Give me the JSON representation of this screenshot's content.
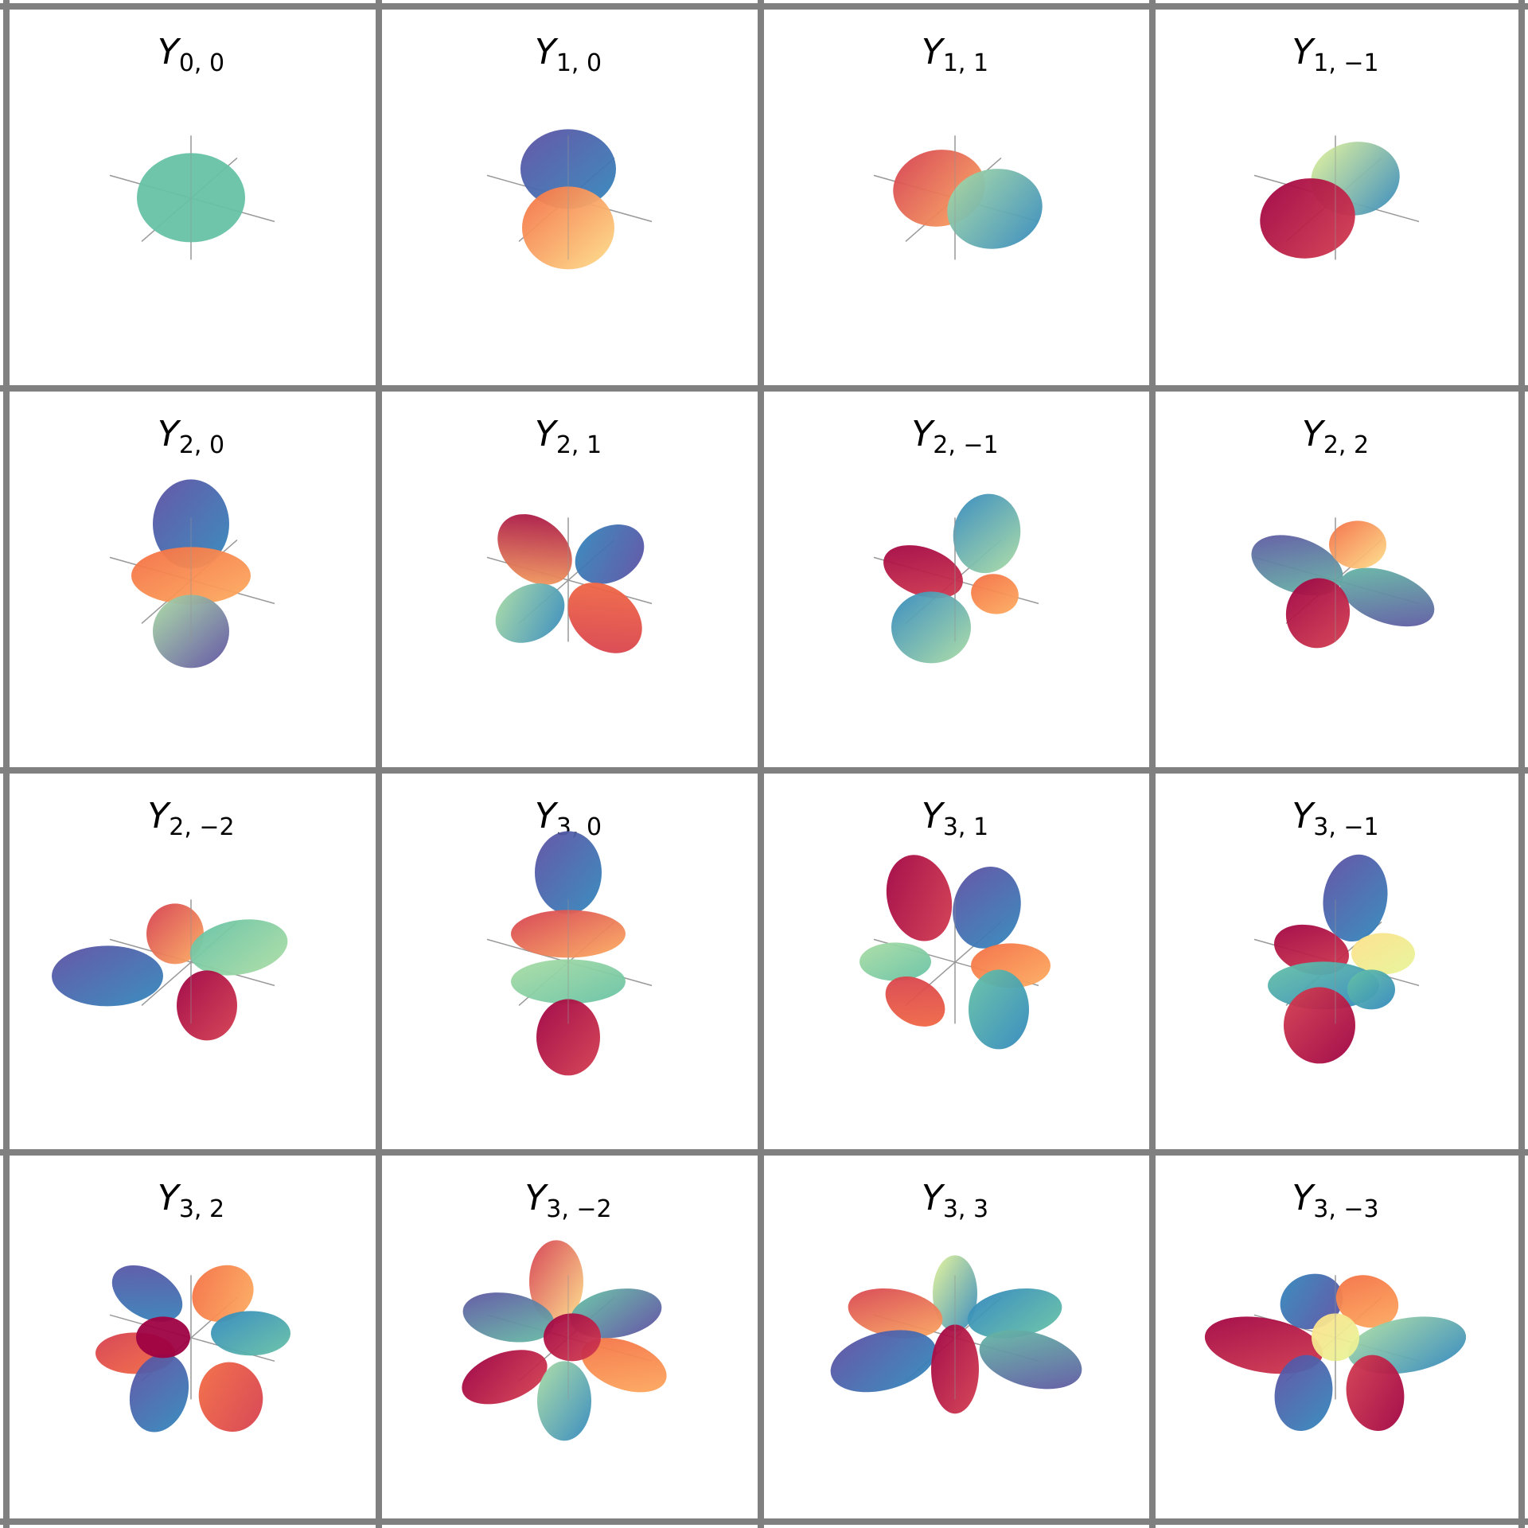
{
  "palette": {
    "grid_line": "#808080",
    "background": "#ffffff",
    "axis_line": "#999999",
    "text": "#000000",
    "colormap_spectral": [
      "#9e0142",
      "#d53e4f",
      "#f46d43",
      "#fdae61",
      "#fee08b",
      "#e6f598",
      "#abdda4",
      "#66c2a5",
      "#3288bd",
      "#5e4fa2"
    ]
  },
  "panels": [
    {
      "title_base": "Y",
      "l": "0",
      "sep": ",",
      "m": "0",
      "l_val": 0,
      "m_val": 0
    },
    {
      "title_base": "Y",
      "l": "1",
      "sep": ",",
      "m": "0",
      "l_val": 1,
      "m_val": 0
    },
    {
      "title_base": "Y",
      "l": "1",
      "sep": ",",
      "m": "1",
      "l_val": 1,
      "m_val": 1
    },
    {
      "title_base": "Y",
      "l": "1",
      "sep": ",",
      "m": "−1",
      "l_val": 1,
      "m_val": -1
    },
    {
      "title_base": "Y",
      "l": "2",
      "sep": ",",
      "m": "0",
      "l_val": 2,
      "m_val": 0
    },
    {
      "title_base": "Y",
      "l": "2",
      "sep": ",",
      "m": "1",
      "l_val": 2,
      "m_val": 1
    },
    {
      "title_base": "Y",
      "l": "2",
      "sep": ",",
      "m": "−1",
      "l_val": 2,
      "m_val": -1
    },
    {
      "title_base": "Y",
      "l": "2",
      "sep": ",",
      "m": "2",
      "l_val": 2,
      "m_val": 2
    },
    {
      "title_base": "Y",
      "l": "2",
      "sep": ",",
      "m": "−2",
      "l_val": 2,
      "m_val": -2
    },
    {
      "title_base": "Y",
      "l": "3",
      "sep": ",",
      "m": "0",
      "l_val": 3,
      "m_val": 0
    },
    {
      "title_base": "Y",
      "l": "3",
      "sep": ",",
      "m": "1",
      "l_val": 3,
      "m_val": 1
    },
    {
      "title_base": "Y",
      "l": "3",
      "sep": ",",
      "m": "−1",
      "l_val": 3,
      "m_val": -1
    },
    {
      "title_base": "Y",
      "l": "3",
      "sep": ",",
      "m": "2",
      "l_val": 3,
      "m_val": 2
    },
    {
      "title_base": "Y",
      "l": "3",
      "sep": ",",
      "m": "−2",
      "l_val": 3,
      "m_val": -2
    },
    {
      "title_base": "Y",
      "l": "3",
      "sep": ",",
      "m": "3",
      "l_val": 3,
      "m_val": 3
    },
    {
      "title_base": "Y",
      "l": "3",
      "sep": ",",
      "m": "−3",
      "l_val": 3,
      "m_val": -3
    }
  ]
}
